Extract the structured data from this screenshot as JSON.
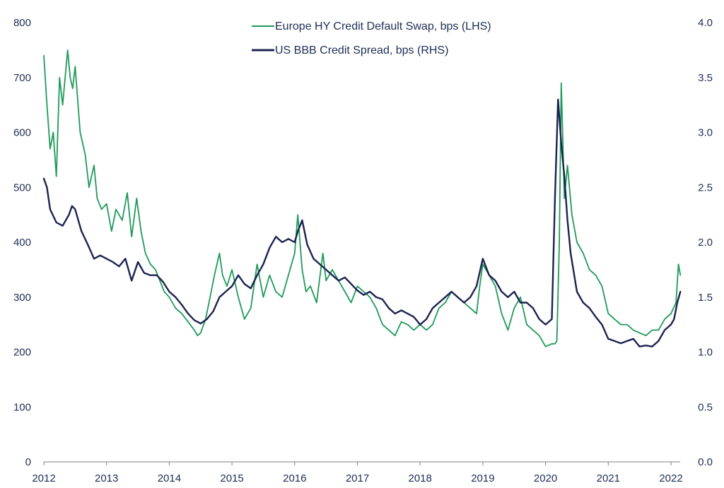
{
  "chart_data": {
    "type": "line",
    "title": "",
    "xlabel": "",
    "ylabel": "",
    "y2label": "",
    "grid": false,
    "legend_position": "top-center",
    "xlim": [
      2012,
      2022.2
    ],
    "ylim": [
      0,
      800
    ],
    "y2lim": [
      0.0,
      4.0
    ],
    "x_ticks": [
      "2012",
      "2013",
      "2014",
      "2015",
      "2016",
      "2017",
      "2018",
      "2019",
      "2020",
      "2021",
      "2022"
    ],
    "y_ticks": [
      "0",
      "100",
      "200",
      "300",
      "400",
      "500",
      "600",
      "700",
      "800"
    ],
    "y2_ticks": [
      "0.0",
      "0.5",
      "1.0",
      "1.5",
      "2.0",
      "2.5",
      "3.0",
      "3.5",
      "4.0"
    ],
    "series": [
      {
        "name": "Europe HY Credit Default Swap, bps (LHS)",
        "axis": "left",
        "color": "#1e9a5a",
        "x": [
          2012.0,
          2012.05,
          2012.1,
          2012.15,
          2012.2,
          2012.25,
          2012.3,
          2012.38,
          2012.42,
          2012.46,
          2012.5,
          2012.58,
          2012.66,
          2012.72,
          2012.8,
          2012.85,
          2012.92,
          2013.0,
          2013.08,
          2013.15,
          2013.25,
          2013.33,
          2013.4,
          2013.48,
          2013.55,
          2013.62,
          2013.7,
          2013.78,
          2013.85,
          2013.92,
          2014.0,
          2014.1,
          2014.2,
          2014.3,
          2014.4,
          2014.45,
          2014.5,
          2014.58,
          2014.65,
          2014.72,
          2014.8,
          2014.85,
          2014.92,
          2015.0,
          2015.1,
          2015.2,
          2015.3,
          2015.4,
          2015.5,
          2015.6,
          2015.7,
          2015.8,
          2015.9,
          2016.0,
          2016.05,
          2016.12,
          2016.18,
          2016.25,
          2016.35,
          2016.45,
          2016.5,
          2016.6,
          2016.7,
          2016.8,
          2016.9,
          2017.0,
          2017.1,
          2017.2,
          2017.3,
          2017.4,
          2017.5,
          2017.6,
          2017.7,
          2017.8,
          2017.9,
          2018.0,
          2018.1,
          2018.2,
          2018.3,
          2018.4,
          2018.5,
          2018.6,
          2018.7,
          2018.8,
          2018.9,
          2018.95,
          2019.0,
          2019.1,
          2019.2,
          2019.3,
          2019.4,
          2019.5,
          2019.6,
          2019.7,
          2019.8,
          2019.9,
          2020.0,
          2020.1,
          2020.15,
          2020.18,
          2020.22,
          2020.25,
          2020.3,
          2020.35,
          2020.42,
          2020.5,
          2020.6,
          2020.7,
          2020.8,
          2020.9,
          2021.0,
          2021.1,
          2021.2,
          2021.3,
          2021.4,
          2021.5,
          2021.6,
          2021.7,
          2021.8,
          2021.9,
          2022.0,
          2022.08,
          2022.12,
          2022.15
        ],
        "y": [
          740,
          650,
          570,
          600,
          520,
          700,
          650,
          750,
          700,
          680,
          720,
          600,
          560,
          500,
          540,
          480,
          460,
          470,
          420,
          460,
          440,
          490,
          410,
          480,
          420,
          380,
          360,
          350,
          330,
          310,
          300,
          280,
          270,
          255,
          240,
          230,
          235,
          260,
          300,
          340,
          380,
          340,
          320,
          350,
          300,
          260,
          280,
          360,
          300,
          340,
          310,
          300,
          340,
          380,
          450,
          350,
          310,
          320,
          290,
          380,
          330,
          350,
          330,
          310,
          290,
          320,
          310,
          300,
          280,
          250,
          240,
          230,
          255,
          250,
          240,
          250,
          240,
          250,
          280,
          290,
          310,
          300,
          290,
          280,
          270,
          320,
          360,
          340,
          320,
          270,
          240,
          280,
          300,
          250,
          240,
          230,
          210,
          215,
          215,
          220,
          400,
          690,
          480,
          540,
          450,
          400,
          380,
          350,
          340,
          320,
          270,
          260,
          250,
          250,
          240,
          235,
          230,
          240,
          240,
          260,
          270,
          290,
          360,
          340
        ]
      },
      {
        "name": "US BBB Credit Spread, bps (RHS)",
        "axis": "right",
        "color": "#1b2350",
        "x": [
          2012.0,
          2012.05,
          2012.1,
          2012.2,
          2012.3,
          2012.4,
          2012.45,
          2012.5,
          2012.6,
          2012.7,
          2012.8,
          2012.9,
          2013.0,
          2013.1,
          2013.2,
          2013.3,
          2013.4,
          2013.5,
          2013.6,
          2013.7,
          2013.8,
          2013.9,
          2014.0,
          2014.1,
          2014.2,
          2014.3,
          2014.4,
          2014.5,
          2014.6,
          2014.7,
          2014.8,
          2014.9,
          2015.0,
          2015.1,
          2015.2,
          2015.3,
          2015.4,
          2015.5,
          2015.6,
          2015.7,
          2015.8,
          2015.9,
          2016.0,
          2016.05,
          2016.12,
          2016.2,
          2016.3,
          2016.4,
          2016.5,
          2016.6,
          2016.7,
          2016.8,
          2016.9,
          2017.0,
          2017.1,
          2017.2,
          2017.3,
          2017.4,
          2017.5,
          2017.6,
          2017.7,
          2017.8,
          2017.9,
          2018.0,
          2018.1,
          2018.2,
          2018.3,
          2018.4,
          2018.5,
          2018.6,
          2018.7,
          2018.8,
          2018.9,
          2019.0,
          2019.1,
          2019.2,
          2019.3,
          2019.4,
          2019.5,
          2019.6,
          2019.7,
          2019.8,
          2019.9,
          2020.0,
          2020.1,
          2020.15,
          2020.2,
          2020.25,
          2020.3,
          2020.35,
          2020.4,
          2020.5,
          2020.6,
          2020.7,
          2020.8,
          2020.9,
          2021.0,
          2021.1,
          2021.2,
          2021.3,
          2021.4,
          2021.5,
          2021.6,
          2021.7,
          2021.8,
          2021.9,
          2022.0,
          2022.05,
          2022.1,
          2022.15
        ],
        "y": [
          2.58,
          2.5,
          2.3,
          2.18,
          2.15,
          2.25,
          2.33,
          2.3,
          2.1,
          1.98,
          1.85,
          1.88,
          1.85,
          1.82,
          1.78,
          1.85,
          1.65,
          1.82,
          1.72,
          1.7,
          1.7,
          1.64,
          1.55,
          1.5,
          1.43,
          1.35,
          1.29,
          1.26,
          1.3,
          1.37,
          1.5,
          1.55,
          1.6,
          1.7,
          1.62,
          1.58,
          1.7,
          1.8,
          1.95,
          2.05,
          2.0,
          2.03,
          2.0,
          2.1,
          2.2,
          1.98,
          1.85,
          1.8,
          1.75,
          1.7,
          1.65,
          1.68,
          1.62,
          1.56,
          1.52,
          1.55,
          1.5,
          1.48,
          1.4,
          1.35,
          1.38,
          1.35,
          1.32,
          1.25,
          1.3,
          1.4,
          1.45,
          1.5,
          1.55,
          1.5,
          1.45,
          1.5,
          1.6,
          1.85,
          1.7,
          1.65,
          1.55,
          1.5,
          1.55,
          1.45,
          1.45,
          1.4,
          1.3,
          1.25,
          1.3,
          2.4,
          3.3,
          2.9,
          2.6,
          2.2,
          1.9,
          1.55,
          1.45,
          1.4,
          1.32,
          1.25,
          1.12,
          1.1,
          1.08,
          1.1,
          1.12,
          1.05,
          1.06,
          1.05,
          1.1,
          1.2,
          1.25,
          1.3,
          1.45,
          1.55
        ]
      }
    ]
  }
}
